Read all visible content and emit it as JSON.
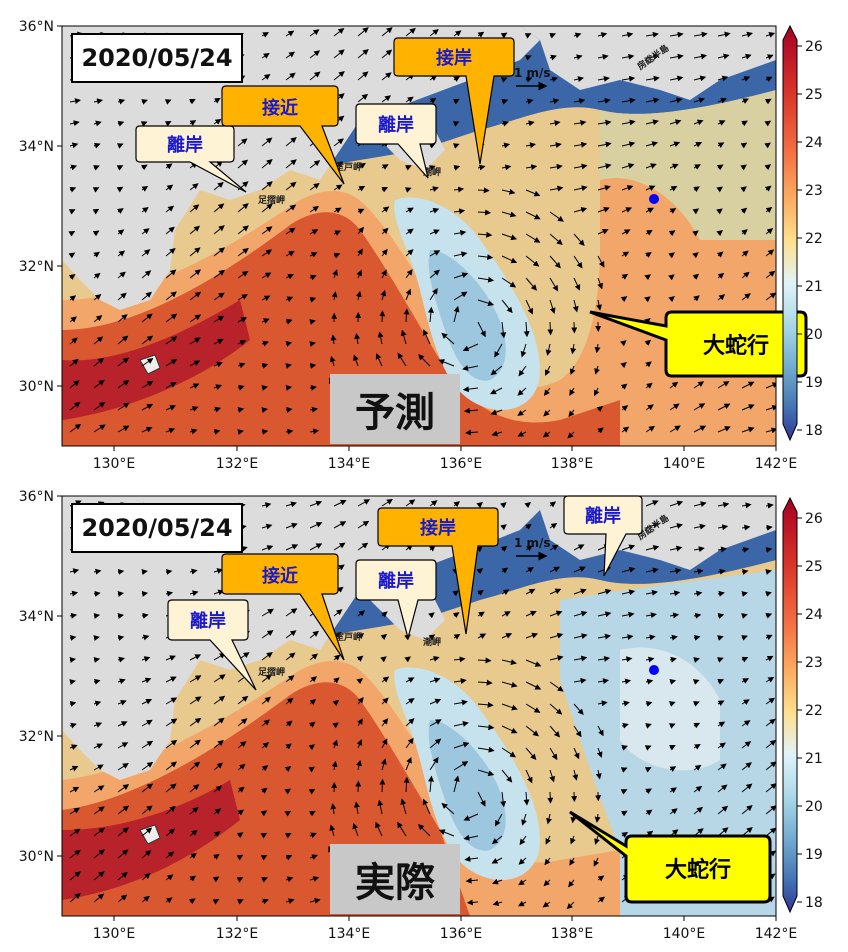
{
  "panels": [
    {
      "id": "forecast",
      "date": "2020/05/24",
      "label": "予測",
      "callouts": {
        "rigan_west": "離岸",
        "sekkin": "接近",
        "rigan_mid": "離岸",
        "setsugan": "接岸",
        "daidako": "大蛇行"
      },
      "places": {
        "ashizuri": "足摺岬",
        "muroto": "室戸岬",
        "shiono": "潮岬",
        "boso": "房総半島"
      }
    },
    {
      "id": "actual",
      "date": "2020/05/24",
      "label": "実際",
      "callouts": {
        "rigan_west": "離岸",
        "sekkin": "接近",
        "rigan_mid": "離岸",
        "setsugan": "接岸",
        "rigan_east": "離岸",
        "daidako": "大蛇行"
      },
      "places": {
        "ashizuri": "足摺岬",
        "muroto": "室戸岬",
        "shiono": "潮岬",
        "boso": "房総半島"
      }
    }
  ],
  "scale_label": "1 m/s",
  "lon_ticks": [
    "130°E",
    "132°E",
    "134°E",
    "136°E",
    "138°E",
    "140°E",
    "142°E"
  ],
  "lat_ticks": [
    "36°N",
    "34°N",
    "32°N",
    "30°N"
  ],
  "colorbar": {
    "min": 18,
    "max": 26,
    "ticks": [
      "26",
      "25",
      "24",
      "23",
      "22",
      "21",
      "20",
      "19",
      "18"
    ]
  },
  "colors": {
    "land": "#dcdcdc",
    "callout_orange": "#ffb300",
    "callout_cream": "#fff3d6",
    "callout_yellow": "#ffff00",
    "callout_text_blue": "#1a1acc",
    "label_box": "#c8c8c8",
    "marker": "#0000ff"
  },
  "icons": [
    "scale-arrow-icon",
    "station-marker-icon"
  ]
}
